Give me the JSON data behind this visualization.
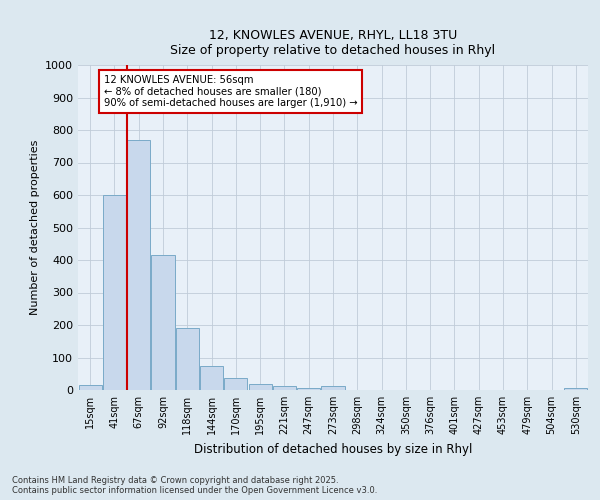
{
  "title1": "12, KNOWLES AVENUE, RHYL, LL18 3TU",
  "title2": "Size of property relative to detached houses in Rhyl",
  "xlabel": "Distribution of detached houses by size in Rhyl",
  "ylabel": "Number of detached properties",
  "categories": [
    "15sqm",
    "41sqm",
    "67sqm",
    "92sqm",
    "118sqm",
    "144sqm",
    "170sqm",
    "195sqm",
    "221sqm",
    "247sqm",
    "273sqm",
    "298sqm",
    "324sqm",
    "350sqm",
    "376sqm",
    "401sqm",
    "427sqm",
    "453sqm",
    "479sqm",
    "504sqm",
    "530sqm"
  ],
  "values": [
    15,
    600,
    770,
    415,
    190,
    75,
    37,
    20,
    12,
    7,
    12,
    0,
    0,
    0,
    0,
    0,
    0,
    0,
    0,
    0,
    5
  ],
  "bar_color": "#c8d8ec",
  "bar_edge_color": "#7aaac8",
  "vline_color": "#cc0000",
  "annotation_text": "12 KNOWLES AVENUE: 56sqm\n← 8% of detached houses are smaller (180)\n90% of semi-detached houses are larger (1,910) →",
  "annotation_box_color": "#ffffff",
  "annotation_box_edge": "#cc0000",
  "ylim": [
    0,
    1000
  ],
  "yticks": [
    0,
    100,
    200,
    300,
    400,
    500,
    600,
    700,
    800,
    900,
    1000
  ],
  "footer": "Contains HM Land Registry data © Crown copyright and database right 2025.\nContains public sector information licensed under the Open Government Licence v3.0.",
  "bg_color": "#dce8f0",
  "plot_bg_color": "#e8f0f8",
  "grid_color": "#c0ccd8"
}
